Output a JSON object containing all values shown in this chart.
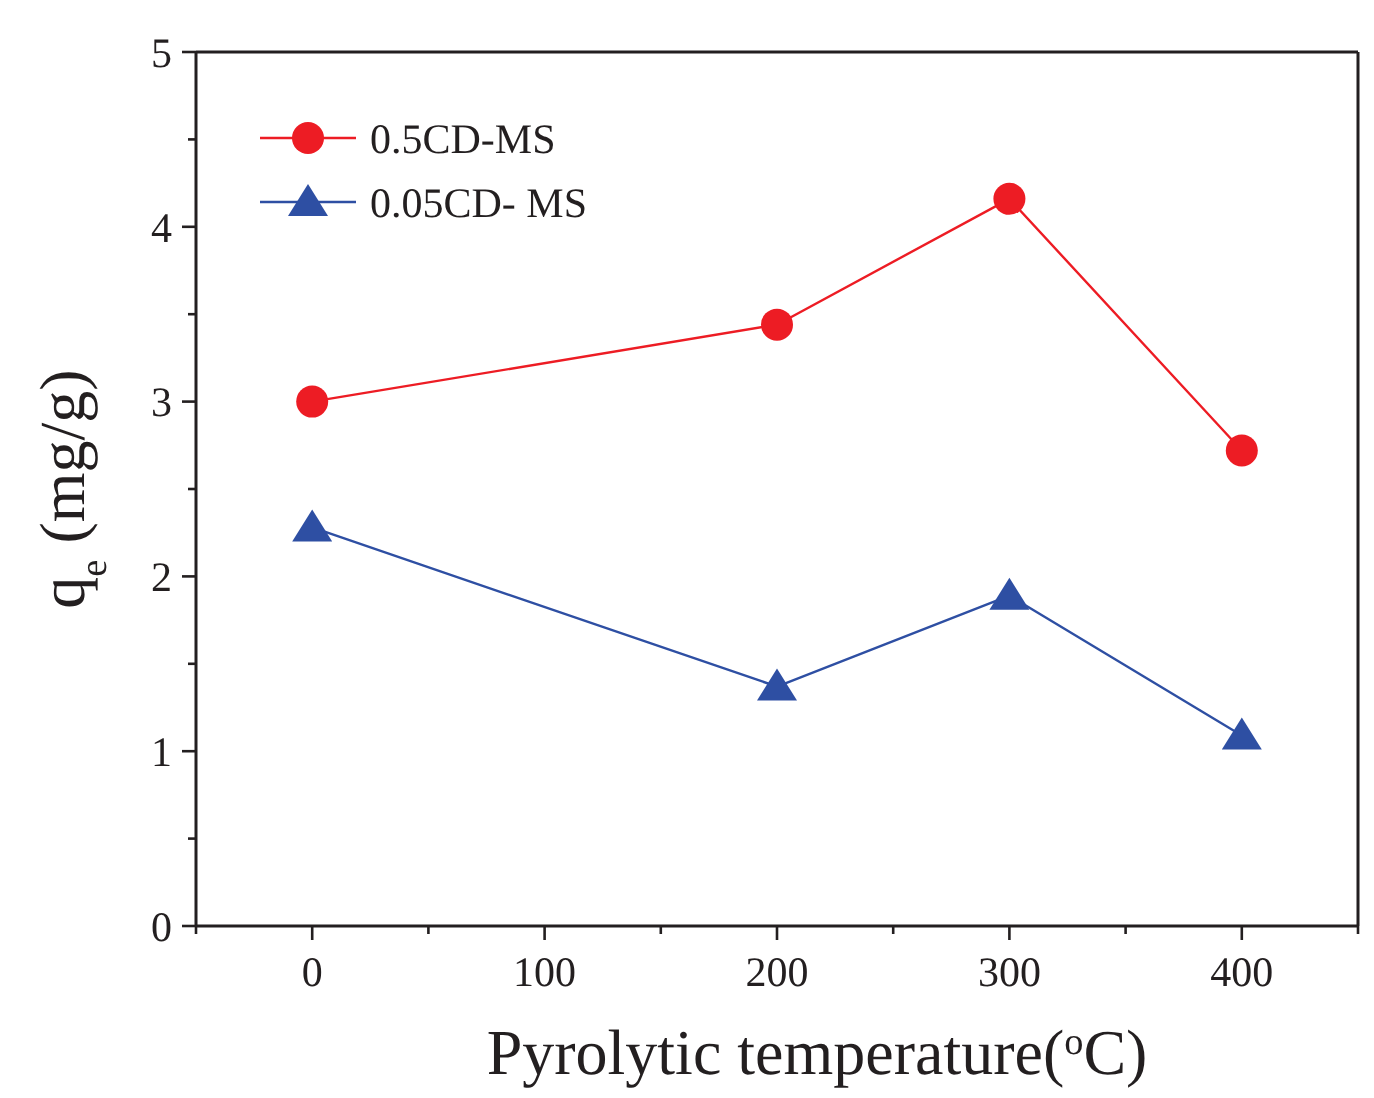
{
  "chart_data": {
    "type": "line",
    "xlabel": "Pyrolytic temperature($^{o}$C)",
    "ylabel": "q$_{e}$ (mg/g)",
    "x": [
      0,
      200,
      300,
      400
    ],
    "series": [
      {
        "name": "0.5CD-MS",
        "color": "#ed1c24",
        "values": [
          3.0,
          3.44,
          4.16,
          2.72
        ],
        "marker": "circle"
      },
      {
        "name": "0.05CD- MS",
        "color": "#2e4fa3",
        "values": [
          2.28,
          1.37,
          1.89,
          1.09
        ],
        "marker": "triangle"
      }
    ],
    "xlim": [
      -50,
      450
    ],
    "xticks": [
      {
        "value": -50,
        "label": null
      },
      0,
      {
        "value": 50,
        "label": null
      },
      100,
      {
        "value": 150,
        "label": null
      },
      200,
      {
        "value": 250,
        "label": null
      },
      300,
      {
        "value": 350,
        "label": null
      },
      400,
      {
        "value": 450,
        "label": null
      }
    ],
    "ylim": [
      0,
      5
    ],
    "yticks": [
      0,
      {
        "value": 0.5,
        "label": null
      },
      1,
      {
        "value": 1.5,
        "label": null
      },
      2,
      {
        "value": 2.5,
        "label": null
      },
      3,
      {
        "value": 3.5,
        "label": null
      },
      4,
      {
        "value": 4.5,
        "label": null
      },
      5
    ],
    "grid": false,
    "legend": "top left",
    "line_style": "solid"
  }
}
